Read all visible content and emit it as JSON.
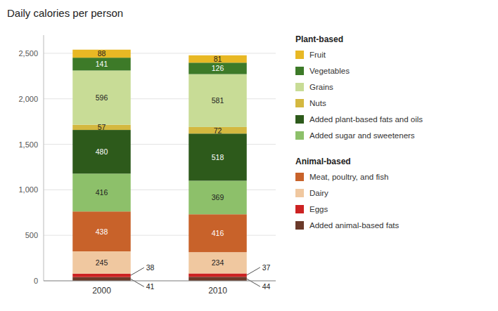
{
  "chart_data": {
    "type": "bar",
    "stacked": true,
    "title": "Daily calories per person",
    "categories": [
      "2000",
      "2010"
    ],
    "series": [
      {
        "name": "Added animal-based fats",
        "values": [
          41,
          44
        ],
        "color": "#6B3A2A"
      },
      {
        "name": "Eggs",
        "values": [
          38,
          37
        ],
        "color": "#CC2222"
      },
      {
        "name": "Dairy",
        "values": [
          245,
          234
        ],
        "color": "#F0C8A0"
      },
      {
        "name": "Meat, poultry, and fish",
        "values": [
          438,
          416
        ],
        "color": "#C8622A"
      },
      {
        "name": "Added sugar and sweeteners",
        "values": [
          416,
          369
        ],
        "color": "#8DC06A"
      },
      {
        "name": "Added plant-based fats and oils",
        "values": [
          480,
          518
        ],
        "color": "#2D5A1B"
      },
      {
        "name": "Nuts",
        "values": [
          57,
          72
        ],
        "color": "#D4B840"
      },
      {
        "name": "Grains",
        "values": [
          596,
          581
        ],
        "color": "#C8DC96"
      },
      {
        "name": "Vegetables",
        "values": [
          141,
          126
        ],
        "color": "#3D7A28"
      },
      {
        "name": "Fruit",
        "values": [
          88,
          81
        ],
        "color": "#E8B824"
      }
    ],
    "ylim": [
      0,
      2700
    ],
    "yticks": [
      0,
      500,
      {
        "value": 1000,
        "label": "1,000"
      },
      {
        "value": 1500,
        "label": "1,500"
      },
      {
        "value": 2000,
        "label": "2,000"
      },
      {
        "value": 2500,
        "label": "2,500"
      }
    ],
    "grid": true,
    "data_labels": true,
    "legend": "right",
    "legend_groups": [
      {
        "title": "Plant-based",
        "names": [
          "Fruit",
          "Vegetables",
          "Grains",
          "Nuts",
          "Added plant-based fats and oils",
          "Added sugar and sweeteners"
        ]
      },
      {
        "title": "Animal-based",
        "names": [
          "Meat, poultry, and fish",
          "Dairy",
          "Eggs",
          "Added animal-based fats"
        ]
      }
    ]
  }
}
